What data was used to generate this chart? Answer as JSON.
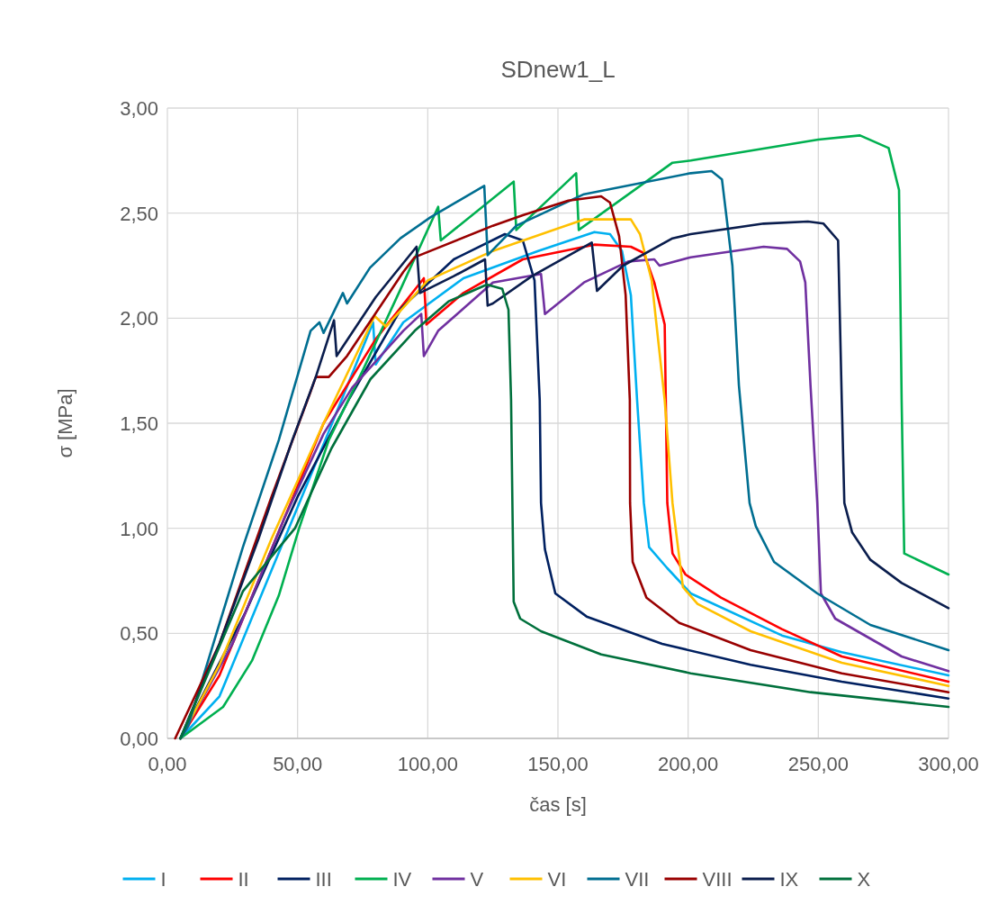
{
  "chart_data": {
    "type": "line",
    "title": "SDnew1_L",
    "xlabel": "čas [s]",
    "ylabel": "σ [MPa]",
    "xlim": [
      0,
      300
    ],
    "ylim": [
      0,
      3
    ],
    "xticks": [
      {
        "value": 0,
        "label": "0,00"
      },
      {
        "value": 50,
        "label": "50,00"
      },
      {
        "value": 100,
        "label": "100,00"
      },
      {
        "value": 150,
        "label": "150,00"
      },
      {
        "value": 200,
        "label": "200,00"
      },
      {
        "value": 250,
        "label": "250,00"
      },
      {
        "value": 300,
        "label": "300,00"
      }
    ],
    "yticks": [
      {
        "value": 0,
        "label": "0,00"
      },
      {
        "value": 0.5,
        "label": "0,50"
      },
      {
        "value": 1,
        "label": "1,00"
      },
      {
        "value": 1.5,
        "label": "1,50"
      },
      {
        "value": 2,
        "label": "2,00"
      },
      {
        "value": 2.5,
        "label": "2,50"
      },
      {
        "value": 3,
        "label": "3,00"
      }
    ],
    "grid": true,
    "legend": "bottom",
    "marker": "none",
    "line_style": "solid",
    "series": [
      {
        "name": "I",
        "color": "#00b0f0",
        "x": [
          5,
          20,
          40,
          60,
          79,
          80,
          90.6,
          113.7,
          142.4,
          164,
          170,
          174.6,
          178,
          180.4,
          183,
          185,
          192,
          201,
          236,
          259,
          300
        ],
        "values": [
          0,
          0.2,
          0.8,
          1.4,
          1.98,
          1.78,
          1.98,
          2.19,
          2.32,
          2.41,
          2.4,
          2.32,
          2.11,
          1.61,
          1.12,
          0.91,
          0.81,
          0.69,
          0.49,
          0.41,
          0.3
        ]
      },
      {
        "name": "II",
        "color": "#ff0000",
        "x": [
          5,
          20,
          60,
          80,
          98.5,
          99.5,
          113.7,
          136.5,
          164,
          178,
          183,
          187,
          191,
          192,
          194,
          199,
          212.6,
          236,
          259,
          300
        ],
        "values": [
          0,
          0.3,
          1.5,
          1.9,
          2.19,
          1.97,
          2.12,
          2.28,
          2.35,
          2.34,
          2.31,
          2.17,
          1.97,
          1.12,
          0.88,
          0.78,
          0.67,
          0.52,
          0.39,
          0.27
        ]
      },
      {
        "name": "III",
        "color": "#002060",
        "x": [
          5,
          30,
          50,
          70,
          90,
          110,
          129.6,
          136.5,
          141,
          143,
          143.5,
          145,
          149,
          161,
          190,
          224,
          259,
          300
        ],
        "values": [
          0,
          0.6,
          1.15,
          1.62,
          2.05,
          2.28,
          2.4,
          2.37,
          2.18,
          1.61,
          1.12,
          0.9,
          0.69,
          0.58,
          0.45,
          0.35,
          0.27,
          0.19
        ]
      },
      {
        "name": "IV",
        "color": "#00b050",
        "x": [
          5,
          21.4,
          32.5,
          42.8,
          50.6,
          62,
          75,
          90,
          104,
          105,
          133,
          134,
          157,
          158,
          194,
          201,
          250,
          266,
          277,
          281,
          282,
          283,
          300
        ],
        "values": [
          0,
          0.15,
          0.37,
          0.68,
          1,
          1.42,
          1.75,
          2.15,
          2.53,
          2.37,
          2.65,
          2.42,
          2.69,
          2.42,
          2.74,
          2.75,
          2.85,
          2.87,
          2.81,
          2.61,
          1.61,
          0.88,
          0.78
        ]
      },
      {
        "name": "V",
        "color": "#7030a0",
        "x": [
          5,
          25,
          45,
          60,
          71,
          90.6,
          97.5,
          98.5,
          104,
          125,
          143.5,
          145,
          160,
          177,
          187,
          189,
          201,
          229,
          238,
          243,
          245,
          247,
          249.6,
          251,
          256.5,
          282,
          300
        ],
        "values": [
          0,
          0.45,
          1.05,
          1.45,
          1.67,
          1.94,
          2.02,
          1.82,
          1.94,
          2.17,
          2.21,
          2.02,
          2.17,
          2.27,
          2.28,
          2.25,
          2.29,
          2.34,
          2.33,
          2.27,
          2.17,
          1.68,
          1.12,
          0.69,
          0.57,
          0.39,
          0.32
        ]
      },
      {
        "name": "VI",
        "color": "#ffc000",
        "x": [
          5,
          20,
          40,
          60,
          79.6,
          84,
          90.6,
          100,
          125,
          160,
          178,
          181.5,
          186,
          191,
          194,
          198,
          203.6,
          224,
          259,
          300
        ],
        "values": [
          0,
          0.35,
          0.95,
          1.5,
          2.01,
          1.96,
          2.05,
          2.18,
          2.32,
          2.47,
          2.47,
          2.4,
          2.18,
          1.61,
          1.12,
          0.72,
          0.64,
          0.51,
          0.36,
          0.25
        ]
      },
      {
        "name": "VII",
        "color": "#006e91",
        "x": [
          5,
          8,
          29,
          42.8,
          55,
          58.4,
          60,
          67.4,
          69,
          77.8,
          89.5,
          101,
          121.7,
          123,
          134,
          160,
          201,
          209,
          213,
          217,
          219.5,
          223.6,
          226,
          233,
          249.6,
          270,
          300
        ],
        "values": [
          0,
          0.06,
          0.91,
          1.42,
          1.94,
          1.98,
          1.93,
          2.12,
          2.07,
          2.24,
          2.38,
          2.48,
          2.63,
          2.3,
          2.44,
          2.59,
          2.69,
          2.7,
          2.66,
          2.25,
          1.68,
          1.12,
          1.01,
          0.84,
          0.69,
          0.54,
          0.42
        ]
      },
      {
        "name": "VIII",
        "color": "#990000",
        "x": [
          3,
          20,
          40,
          55,
          57,
          62,
          69,
          90.6,
          95,
          125,
          136.5,
          154,
          166.6,
          170,
          173.5,
          176,
          177.6,
          177.7,
          178.7,
          184,
          196.6,
          224,
          259,
          300
        ],
        "values": [
          0,
          0.45,
          1.15,
          1.65,
          1.72,
          1.72,
          1.82,
          2.22,
          2.29,
          2.44,
          2.49,
          2.56,
          2.58,
          2.55,
          2.39,
          2.11,
          1.61,
          1.12,
          0.84,
          0.67,
          0.55,
          0.42,
          0.31,
          0.22
        ]
      },
      {
        "name": "IX",
        "color": "#0a1d4d",
        "x": [
          5,
          20,
          35,
          48,
          57,
          64,
          65,
          80,
          95.7,
          97,
          110,
          122,
          123,
          125,
          140,
          163,
          165,
          175,
          194,
          201,
          229,
          246,
          252,
          257.6,
          259,
          260,
          263,
          270,
          282,
          300
        ],
        "values": [
          0,
          0.45,
          0.95,
          1.42,
          1.72,
          1.99,
          1.82,
          2.1,
          2.34,
          2.12,
          2.2,
          2.28,
          2.06,
          2.07,
          2.2,
          2.36,
          2.13,
          2.25,
          2.38,
          2.4,
          2.45,
          2.46,
          2.45,
          2.37,
          1.61,
          1.12,
          0.98,
          0.85,
          0.74,
          0.62
        ]
      },
      {
        "name": "X",
        "color": "#00703c",
        "x": [
          5,
          29,
          49,
          63,
          78,
          95,
          108,
          122.7,
          128.6,
          131,
          132,
          133,
          135.5,
          143.5,
          166.6,
          201,
          247,
          300
        ],
        "values": [
          0,
          0.7,
          1,
          1.38,
          1.71,
          1.94,
          2.08,
          2.16,
          2.14,
          2.04,
          1.61,
          0.65,
          0.57,
          0.51,
          0.4,
          0.31,
          0.22,
          0.15
        ]
      }
    ]
  }
}
